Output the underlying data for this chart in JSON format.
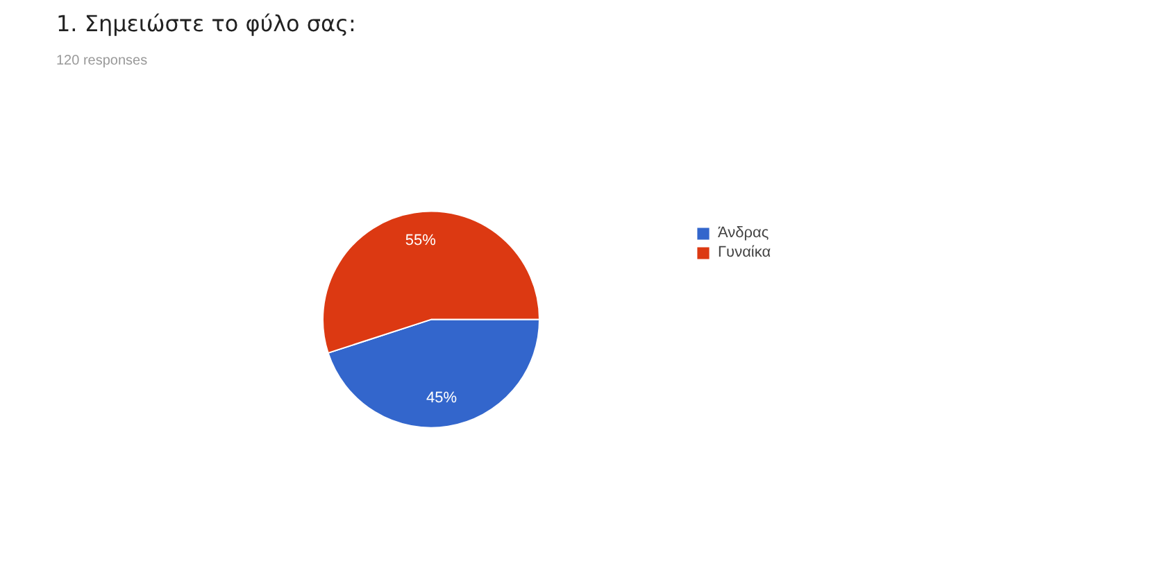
{
  "chart_data": {
    "type": "pie",
    "title": "1. Σημειώστε το φύλο σας:",
    "subtitle": "120 responses",
    "categories": [
      "Άνδρας",
      "Γυναίκα"
    ],
    "values": [
      45,
      55
    ],
    "colors": [
      "#3366cc",
      "#dc3912"
    ],
    "value_labels": [
      "45%",
      "55%"
    ],
    "legend": "top right"
  }
}
